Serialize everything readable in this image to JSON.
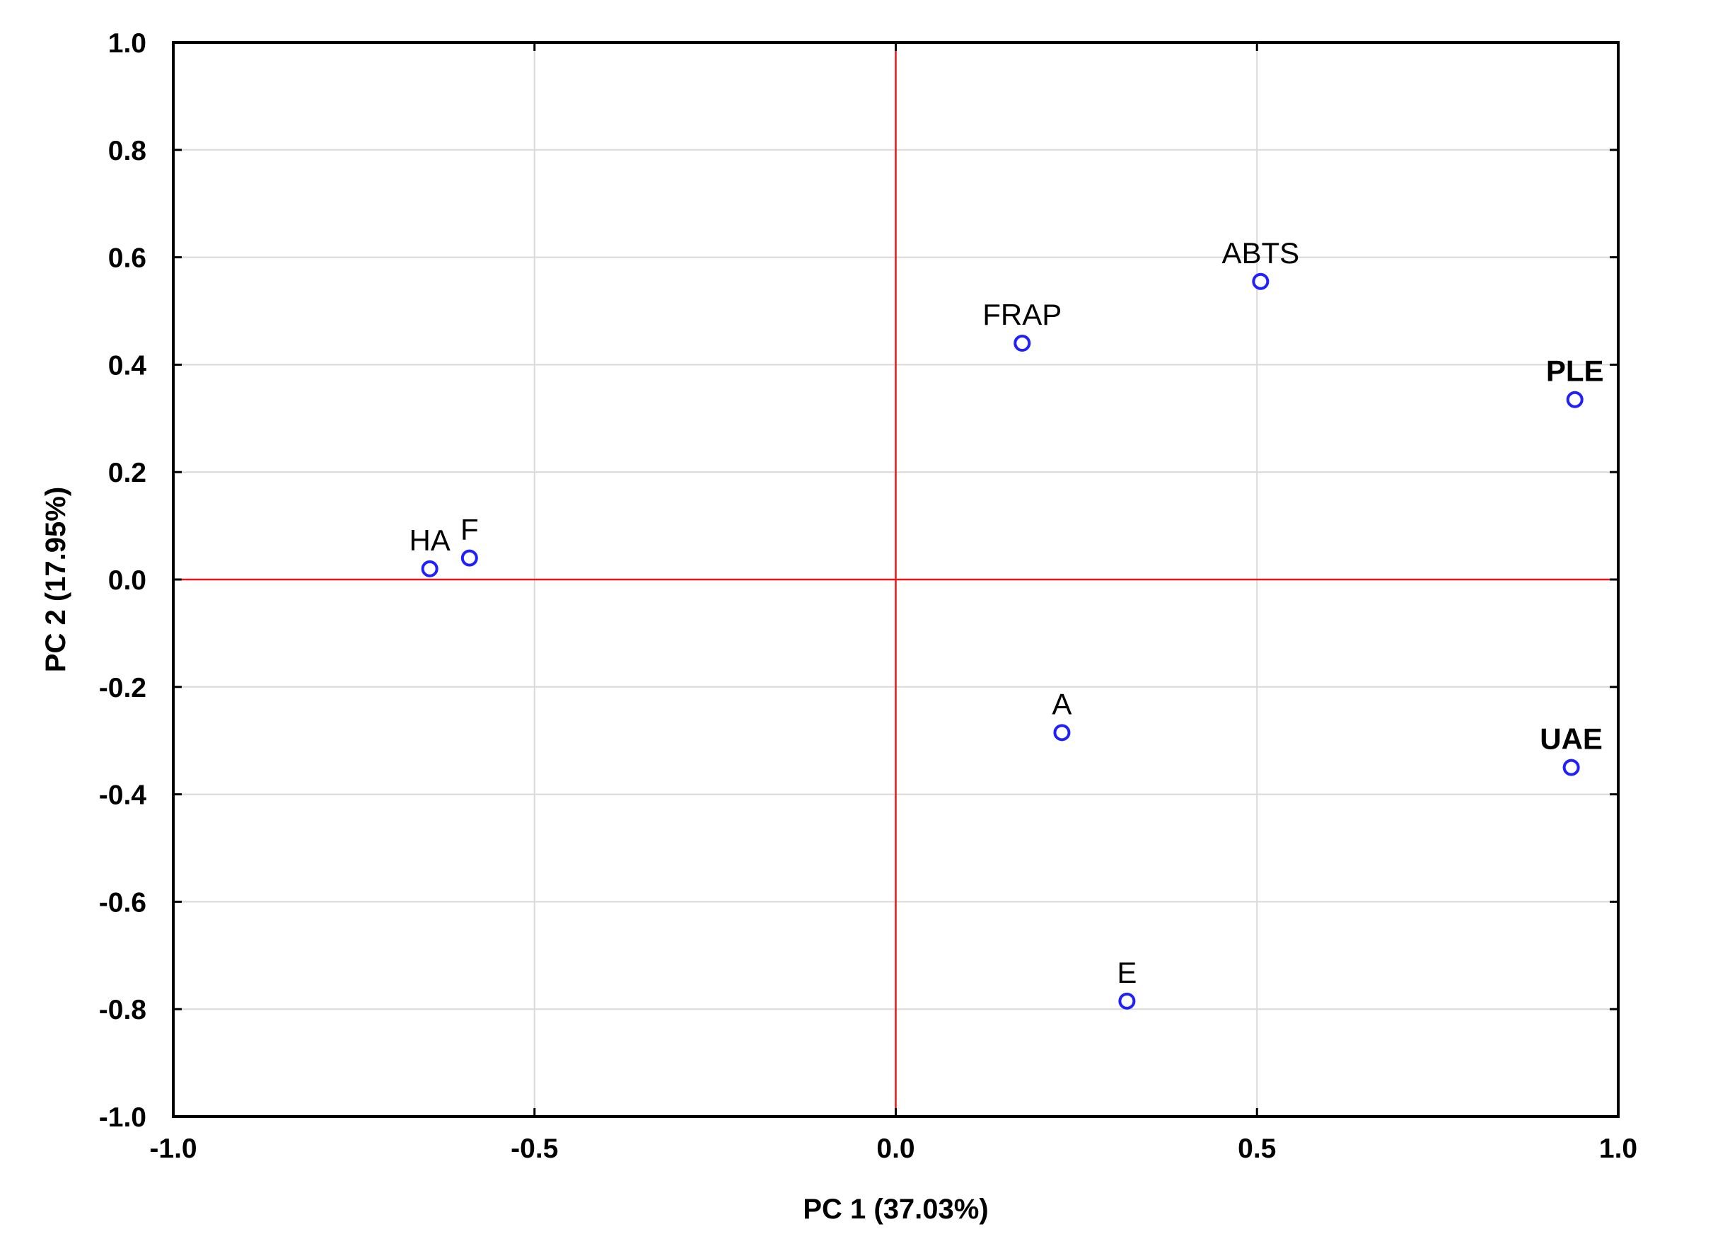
{
  "chart_data": {
    "type": "scatter",
    "xlabel": "PC 1 (37.03%)",
    "ylabel": "PC 2 (17.95%)",
    "xlim": [
      -1.0,
      1.0
    ],
    "ylim": [
      -1.0,
      1.0
    ],
    "x_ticks": [
      -1.0,
      -0.5,
      0.0,
      0.5,
      1.0
    ],
    "y_ticks": [
      1.0,
      0.8,
      0.6,
      0.4,
      0.2,
      0.0,
      -0.2,
      -0.4,
      -0.6,
      -0.8,
      -1.0
    ],
    "x_tick_labels": [
      "-1.0",
      "-0.5",
      "0.0",
      "0.5",
      "1.0"
    ],
    "y_tick_labels": [
      "1.0",
      "0.8",
      "0.6",
      "0.4",
      "0.2",
      "0.0",
      "-0.2",
      "-0.4",
      "-0.6",
      "-0.8",
      "-1.0"
    ],
    "grid": true,
    "reference_lines": {
      "x": 0.0,
      "y": 0.0,
      "color": "#e8161b"
    },
    "marker_color": "#1f1fff",
    "points": [
      {
        "label": "ABTS",
        "x": 0.505,
        "y": 0.555,
        "highlight": false
      },
      {
        "label": "FRAP",
        "x": 0.175,
        "y": 0.44,
        "highlight": false
      },
      {
        "label": "PLE",
        "x": 0.94,
        "y": 0.335,
        "highlight": true
      },
      {
        "label": "HA",
        "x": -0.645,
        "y": 0.02,
        "highlight": false
      },
      {
        "label": "F",
        "x": -0.59,
        "y": 0.04,
        "highlight": false
      },
      {
        "label": "A",
        "x": 0.23,
        "y": -0.285,
        "highlight": false
      },
      {
        "label": "UAE",
        "x": 0.935,
        "y": -0.35,
        "highlight": true
      },
      {
        "label": "E",
        "x": 0.32,
        "y": -0.785,
        "highlight": false
      }
    ],
    "highlight_label_color": "#ee1111"
  }
}
